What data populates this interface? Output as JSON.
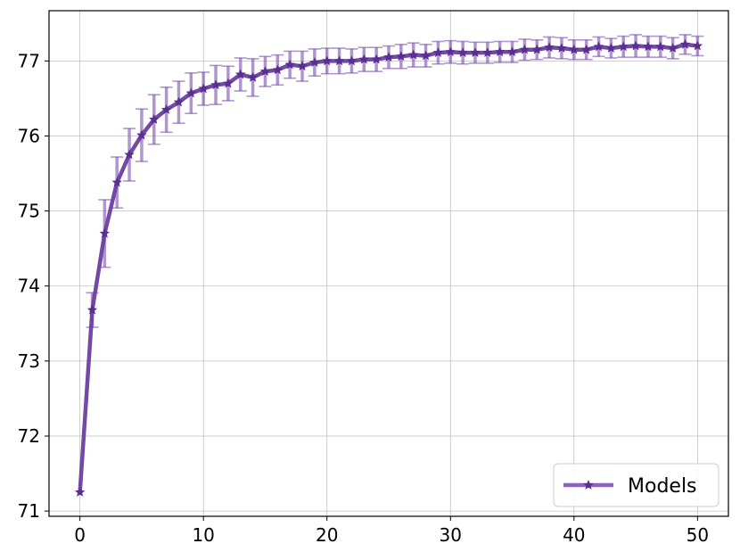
{
  "chart_data": {
    "type": "line",
    "title": "",
    "xlabel": "",
    "ylabel": "",
    "xlim": [
      -2.5,
      52.5
    ],
    "ylim": [
      70.93,
      77.67
    ],
    "xticks": [
      0,
      10,
      20,
      30,
      40,
      50
    ],
    "yticks": [
      71,
      72,
      73,
      74,
      75,
      76,
      77
    ],
    "grid": true,
    "legend_position": "lower-right",
    "series": [
      {
        "name": "Models",
        "color": "#7b4fae",
        "marker": "star",
        "error_bars": true,
        "x": [
          0,
          1,
          2,
          3,
          4,
          5,
          6,
          7,
          8,
          9,
          10,
          11,
          12,
          13,
          14,
          15,
          16,
          17,
          18,
          19,
          20,
          21,
          22,
          23,
          24,
          25,
          26,
          27,
          28,
          29,
          30,
          31,
          32,
          33,
          34,
          35,
          36,
          37,
          38,
          39,
          40,
          41,
          42,
          43,
          44,
          45,
          46,
          47,
          48,
          49,
          50
        ],
        "y": [
          71.25,
          73.68,
          74.7,
          75.38,
          75.75,
          76.01,
          76.22,
          76.35,
          76.45,
          76.57,
          76.63,
          76.68,
          76.7,
          76.82,
          76.78,
          76.86,
          76.88,
          76.95,
          76.93,
          76.98,
          77.0,
          77.0,
          77.0,
          77.02,
          77.02,
          77.05,
          77.06,
          77.08,
          77.07,
          77.11,
          77.12,
          77.11,
          77.11,
          77.11,
          77.12,
          77.12,
          77.15,
          77.15,
          77.18,
          77.17,
          77.15,
          77.15,
          77.19,
          77.17,
          77.19,
          77.2,
          77.19,
          77.19,
          77.17,
          77.22,
          77.2
        ],
        "yerr": [
          0.0,
          0.23,
          0.45,
          0.34,
          0.35,
          0.35,
          0.33,
          0.3,
          0.28,
          0.27,
          0.22,
          0.26,
          0.23,
          0.22,
          0.25,
          0.2,
          0.2,
          0.18,
          0.2,
          0.18,
          0.17,
          0.17,
          0.16,
          0.16,
          0.16,
          0.15,
          0.16,
          0.16,
          0.15,
          0.15,
          0.15,
          0.15,
          0.14,
          0.14,
          0.14,
          0.14,
          0.14,
          0.13,
          0.14,
          0.14,
          0.13,
          0.13,
          0.13,
          0.13,
          0.14,
          0.15,
          0.14,
          0.14,
          0.14,
          0.13,
          0.13
        ]
      }
    ]
  }
}
